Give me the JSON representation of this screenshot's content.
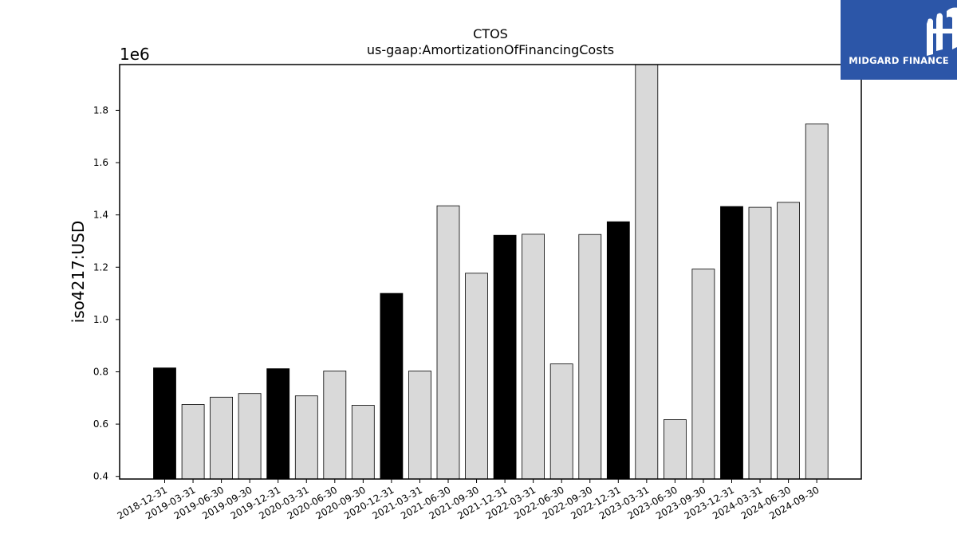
{
  "logo": {
    "text": "MIDGARD FINANCE",
    "background": "#2c56a8",
    "icon": "midgard-logo-icon"
  },
  "chart_data": {
    "type": "bar",
    "title": "CTOS",
    "subtitle": "us-gaap:AmortizationOfFinancingCosts",
    "ylabel": "iso4217:USD",
    "xlabel": "",
    "offset_label": "1e6",
    "ylim": [
      0.39,
      1.975
    ],
    "yticks": [
      "0.4",
      "0.6",
      "0.8",
      "1.0",
      "1.2",
      "1.4",
      "1.6",
      "1.8"
    ],
    "categories": [
      "2018-12-31",
      "2019-03-31",
      "2019-06-30",
      "2019-09-30",
      "2019-12-31",
      "2020-03-31",
      "2020-06-30",
      "2020-09-30",
      "2020-12-31",
      "2021-03-31",
      "2021-06-30",
      "2021-09-30",
      "2021-12-31",
      "2022-03-31",
      "2022-06-30",
      "2022-09-30",
      "2022-12-31",
      "2023-03-31",
      "2023-06-30",
      "2023-09-30",
      "2023-12-31",
      "2024-03-31",
      "2024-06-30",
      "2024-09-30"
    ],
    "values": [
      0.815,
      0.675,
      0.703,
      0.717,
      0.812,
      0.708,
      0.803,
      0.672,
      1.1,
      0.803,
      1.435,
      1.177,
      1.322,
      1.326,
      0.83,
      1.325,
      1.374,
      1.98,
      0.617,
      1.193,
      1.432,
      1.429,
      1.448,
      1.748
    ],
    "highlight": [
      true,
      false,
      false,
      false,
      true,
      false,
      false,
      false,
      true,
      false,
      false,
      false,
      true,
      false,
      false,
      false,
      true,
      false,
      false,
      false,
      true,
      false,
      false,
      false
    ],
    "colors": {
      "highlight": "#000000",
      "normal": "#d9d9d9",
      "edge": "#000000"
    },
    "grid": false
  }
}
